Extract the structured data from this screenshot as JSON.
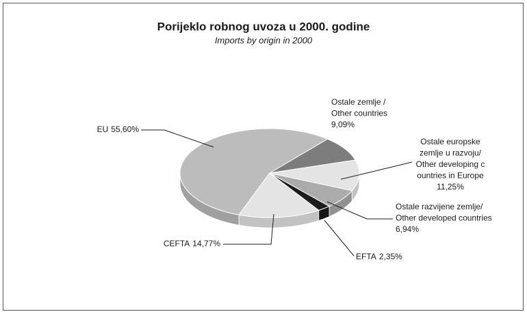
{
  "chart_data": {
    "type": "pie",
    "title": "Porijeklo robnog uvoza u 2000. godine",
    "subtitle": "Imports by origin in 2000",
    "categories": [
      [
        "EU"
      ],
      [
        "Ostale zemlje /",
        "Other countries"
      ],
      [
        "Ostale europske",
        "zemlje u razvoju/",
        "Other developing c",
        "ountries in Europe"
      ],
      [
        "Ostale razvijene zemlje/",
        "Other developed countries"
      ],
      [
        "EFTA"
      ],
      [
        "CEFTA"
      ]
    ],
    "values": [
      55.6,
      9.09,
      11.25,
      6.94,
      2.35,
      14.77
    ],
    "value_labels": [
      "55,60%",
      "9,09%",
      "11,25%",
      "6,94%",
      "2,35%",
      "14,77%"
    ],
    "colors": [
      "#bcbcbc",
      "#7d7d7d",
      "#e4e4e4",
      "#ababab",
      "#1c1c1c",
      "#e4e4e4"
    ]
  }
}
